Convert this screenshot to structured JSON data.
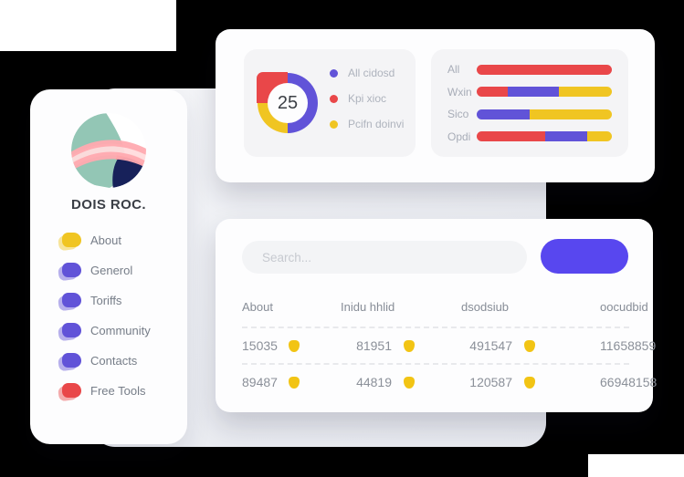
{
  "colors": {
    "red": "#e94749",
    "purple": "#6153d8",
    "yellow": "#f0c522",
    "button": "#5847ef",
    "shield": "#f2c414",
    "white_card": "#fdfdfe",
    "panel_gray": "#f4f4f6",
    "background": "#000000"
  },
  "sidebar": {
    "title": "DOIS ROC.",
    "logo": {
      "description": "abstract circular logo",
      "colors": {
        "teal": "#93c6b5",
        "navy": "#17215a",
        "pink": "#ffaab0",
        "pink_light": "#ffdcdd",
        "red": "#e8402f",
        "bg": "#ffffff"
      }
    },
    "items": [
      {
        "label": "About",
        "color": "yellow"
      },
      {
        "label": "Generol",
        "color": "purple"
      },
      {
        "label": "Toriffs",
        "color": "purple"
      },
      {
        "label": "Community",
        "color": "purple"
      },
      {
        "label": "Contacts",
        "color": "purple"
      },
      {
        "label": "Free Tools",
        "color": "red"
      }
    ]
  },
  "donut_card": {
    "center_value": "25",
    "legend": [
      {
        "label": "All cidosd",
        "color": "purple"
      },
      {
        "label": "Kpi xioc",
        "color": "red"
      },
      {
        "label": "Pcifn doinvi",
        "color": "yellow"
      }
    ],
    "chart": {
      "type": "pie",
      "segments": [
        {
          "label": "All cidosd",
          "color": "purple",
          "pct": 50
        },
        {
          "label": "Pcifn doinvi",
          "color": "yellow",
          "pct": 25
        },
        {
          "label": "Kpi xioc",
          "color": "red",
          "pct": 25
        }
      ]
    }
  },
  "bars_card": {
    "chart_type": "stacked-horizontal-bar",
    "rows": [
      {
        "label": "All",
        "segments": [
          {
            "color": "red",
            "pct": 100
          }
        ]
      },
      {
        "label": "Wxin",
        "segments": [
          {
            "color": "red",
            "pct": 23
          },
          {
            "color": "purple",
            "pct": 38
          },
          {
            "color": "yellow",
            "pct": 39
          }
        ]
      },
      {
        "label": "Sico",
        "segments": [
          {
            "color": "purple",
            "pct": 39
          },
          {
            "color": "yellow",
            "pct": 61
          }
        ]
      },
      {
        "label": "Opdi",
        "segments": [
          {
            "color": "red",
            "pct": 51
          },
          {
            "color": "purple",
            "pct": 31
          },
          {
            "color": "yellow",
            "pct": 18
          }
        ]
      }
    ]
  },
  "table_card": {
    "search_placeholder": "Search...",
    "button_label": "",
    "columns": [
      "About",
      "Inidu hhlid",
      "dsodsiub",
      "oocudbid"
    ],
    "rows": [
      {
        "cells": [
          {
            "value": "15035",
            "shield": true
          },
          {
            "value": "81951",
            "shield": true
          },
          {
            "value": "491547",
            "shield": true
          },
          {
            "value": "11658859",
            "shield": false
          }
        ]
      },
      {
        "cells": [
          {
            "value": "89487",
            "shield": true
          },
          {
            "value": "44819",
            "shield": true
          },
          {
            "value": "120587",
            "shield": true
          },
          {
            "value": "66948158",
            "shield": false
          }
        ]
      }
    ]
  }
}
